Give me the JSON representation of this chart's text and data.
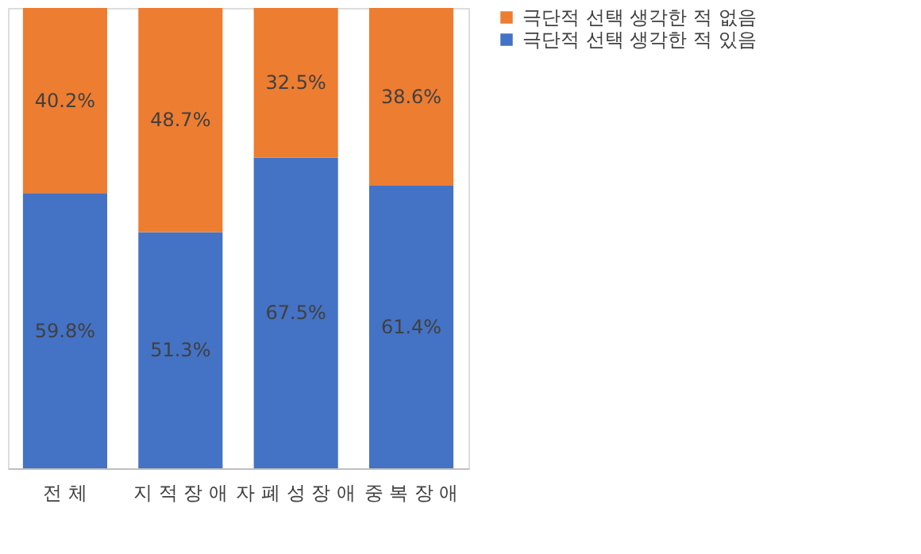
{
  "chart_data": {
    "type": "bar",
    "stacked": true,
    "categories": [
      "전 체",
      "지 적 장 애",
      "자 폐 성 장 애",
      "중 복 장 애"
    ],
    "series": [
      {
        "name": "극단적 선택 생각한 적 있음",
        "color": "#4472c4",
        "values": [
          59.8,
          51.3,
          67.5,
          61.4
        ],
        "value_labels": [
          "59.8%",
          "51.3%",
          "67.5%",
          "61.4%"
        ]
      },
      {
        "name": "극단적 선택 생각한 적 없음",
        "color": "#ed7d31",
        "values": [
          40.2,
          48.7,
          32.5,
          38.6
        ],
        "value_labels": [
          "40.2%",
          "48.7%",
          "32.5%",
          "38.6%"
        ]
      }
    ],
    "legend": "right",
    "grid": false
  }
}
